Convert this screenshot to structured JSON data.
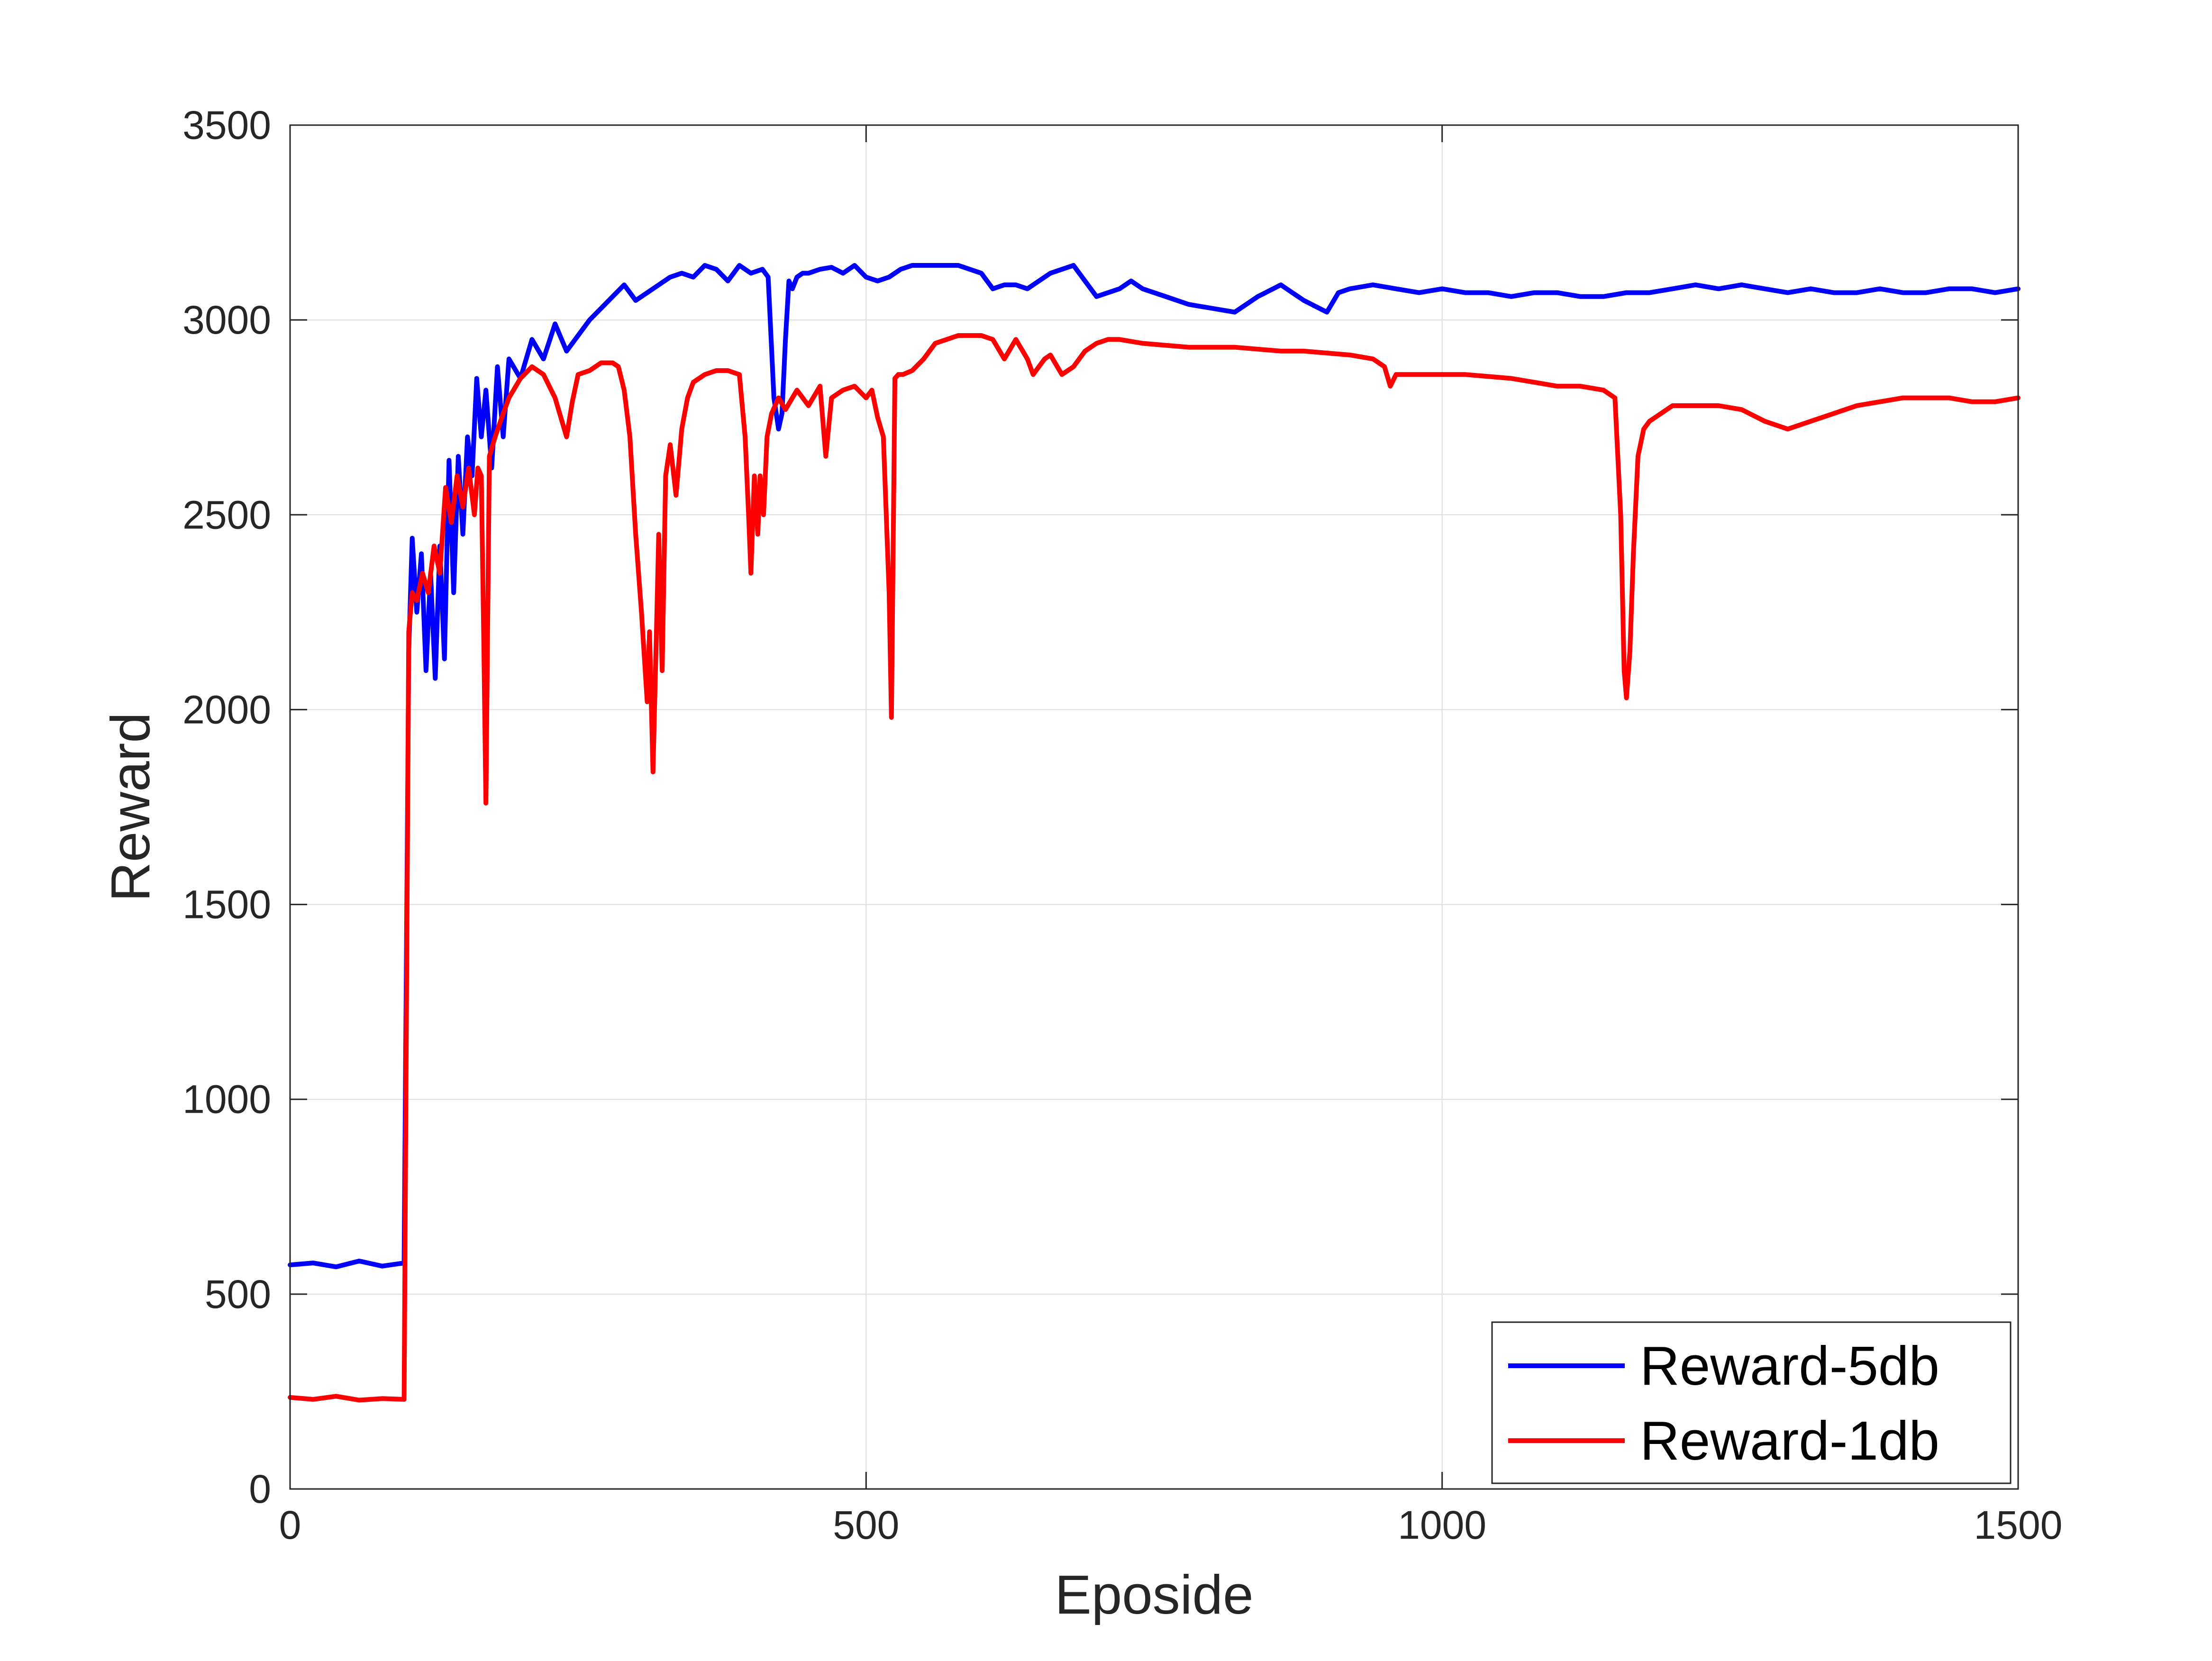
{
  "chart_data": {
    "type": "line",
    "xlabel": "Eposide",
    "ylabel": "Reward",
    "xlim": [
      0,
      1500
    ],
    "ylim": [
      0,
      3500
    ],
    "xticks": [
      0,
      500,
      1000,
      1500
    ],
    "yticks": [
      0,
      500,
      1000,
      1500,
      2000,
      2500,
      3000,
      3500
    ],
    "grid": true,
    "legend_position": "bottom-right",
    "series": [
      {
        "name": "Reward-5db",
        "color": "#0000ff",
        "x": [
          0,
          20,
          40,
          60,
          80,
          99,
          103,
          106,
          110,
          114,
          118,
          122,
          126,
          130,
          134,
          138,
          142,
          146,
          150,
          154,
          158,
          162,
          166,
          170,
          175,
          180,
          185,
          190,
          200,
          210,
          220,
          230,
          240,
          250,
          260,
          270,
          280,
          290,
          300,
          310,
          320,
          330,
          340,
          350,
          360,
          370,
          380,
          390,
          400,
          410,
          415,
          420,
          424,
          427,
          430,
          433,
          436,
          440,
          445,
          450,
          460,
          470,
          480,
          490,
          500,
          510,
          520,
          530,
          540,
          560,
          580,
          600,
          610,
          620,
          630,
          640,
          660,
          680,
          700,
          720,
          730,
          740,
          760,
          780,
          800,
          820,
          840,
          860,
          870,
          880,
          900,
          910,
          920,
          940,
          960,
          980,
          1000,
          1020,
          1040,
          1060,
          1080,
          1100,
          1120,
          1140,
          1160,
          1180,
          1200,
          1220,
          1240,
          1260,
          1280,
          1300,
          1320,
          1340,
          1360,
          1380,
          1400,
          1420,
          1440,
          1460,
          1480,
          1500
        ],
        "y": [
          575,
          580,
          570,
          585,
          572,
          580,
          2150,
          2440,
          2250,
          2400,
          2100,
          2350,
          2080,
          2420,
          2130,
          2640,
          2300,
          2650,
          2450,
          2700,
          2600,
          2850,
          2700,
          2820,
          2620,
          2880,
          2700,
          2900,
          2850,
          2950,
          2900,
          2990,
          2920,
          2960,
          3000,
          3030,
          3060,
          3090,
          3050,
          3070,
          3090,
          3110,
          3120,
          3110,
          3140,
          3130,
          3100,
          3140,
          3120,
          3130,
          3110,
          2800,
          2720,
          2760,
          2950,
          3100,
          3080,
          3110,
          3120,
          3120,
          3130,
          3135,
          3120,
          3140,
          3110,
          3100,
          3110,
          3130,
          3140,
          3140,
          3140,
          3120,
          3080,
          3090,
          3090,
          3080,
          3120,
          3140,
          3060,
          3080,
          3100,
          3080,
          3060,
          3040,
          3030,
          3020,
          3060,
          3090,
          3070,
          3050,
          3020,
          3070,
          3080,
          3090,
          3080,
          3070,
          3080,
          3070,
          3070,
          3060,
          3070,
          3070,
          3060,
          3060,
          3070,
          3070,
          3080,
          3090,
          3080,
          3090,
          3080,
          3070,
          3080,
          3070,
          3070,
          3080,
          3070,
          3070,
          3080,
          3080,
          3070,
          3080
        ]
      },
      {
        "name": "Reward-1db",
        "color": "#ff0000",
        "x": [
          0,
          20,
          40,
          60,
          80,
          99,
          103,
          106,
          110,
          115,
          120,
          125,
          130,
          135,
          140,
          145,
          150,
          155,
          160,
          163,
          166,
          168,
          170,
          173,
          178,
          185,
          190,
          200,
          210,
          220,
          230,
          240,
          245,
          250,
          260,
          270,
          280,
          285,
          290,
          295,
          300,
          305,
          310,
          312,
          315,
          318,
          320,
          323,
          326,
          330,
          335,
          340,
          345,
          350,
          360,
          370,
          380,
          390,
          395,
          398,
          400,
          403,
          406,
          408,
          411,
          414,
          418,
          424,
          430,
          440,
          450,
          460,
          465,
          470,
          480,
          490,
          500,
          505,
          510,
          515,
          520,
          522,
          525,
          528,
          532,
          540,
          550,
          560,
          570,
          580,
          590,
          600,
          610,
          620,
          630,
          640,
          645,
          650,
          655,
          660,
          670,
          680,
          690,
          700,
          710,
          720,
          740,
          760,
          780,
          800,
          820,
          840,
          860,
          880,
          900,
          920,
          940,
          950,
          955,
          960,
          965,
          980,
          1000,
          1020,
          1040,
          1060,
          1080,
          1100,
          1120,
          1140,
          1150,
          1155,
          1158,
          1160,
          1163,
          1166,
          1170,
          1175,
          1180,
          1190,
          1200,
          1220,
          1240,
          1260,
          1280,
          1300,
          1320,
          1340,
          1360,
          1380,
          1400,
          1420,
          1440,
          1460,
          1480,
          1500
        ],
        "y": [
          235,
          230,
          238,
          228,
          232,
          230,
          2200,
          2300,
          2280,
          2350,
          2300,
          2420,
          2350,
          2570,
          2480,
          2600,
          2520,
          2620,
          2500,
          2620,
          2600,
          2200,
          1760,
          2650,
          2700,
          2760,
          2800,
          2850,
          2880,
          2860,
          2800,
          2700,
          2790,
          2860,
          2870,
          2890,
          2890,
          2880,
          2820,
          2700,
          2450,
          2250,
          2020,
          2200,
          1840,
          2200,
          2450,
          2100,
          2600,
          2680,
          2550,
          2720,
          2800,
          2840,
          2860,
          2870,
          2870,
          2860,
          2700,
          2500,
          2350,
          2600,
          2450,
          2600,
          2500,
          2700,
          2760,
          2800,
          2770,
          2820,
          2780,
          2830,
          2650,
          2800,
          2820,
          2830,
          2800,
          2820,
          2750,
          2700,
          2300,
          1980,
          2850,
          2860,
          2860,
          2870,
          2900,
          2940,
          2950,
          2960,
          2960,
          2960,
          2950,
          2900,
          2950,
          2900,
          2860,
          2880,
          2900,
          2910,
          2860,
          2880,
          2920,
          2940,
          2950,
          2950,
          2940,
          2935,
          2930,
          2930,
          2930,
          2925,
          2920,
          2920,
          2915,
          2910,
          2900,
          2880,
          2830,
          2860,
          2860,
          2860,
          2860,
          2860,
          2855,
          2850,
          2840,
          2830,
          2830,
          2820,
          2800,
          2500,
          2100,
          2030,
          2150,
          2400,
          2650,
          2720,
          2740,
          2760,
          2780,
          2780,
          2780,
          2770,
          2740,
          2720,
          2740,
          2760,
          2780,
          2790,
          2800,
          2800,
          2800,
          2790,
          2790,
          2800
        ]
      }
    ]
  }
}
